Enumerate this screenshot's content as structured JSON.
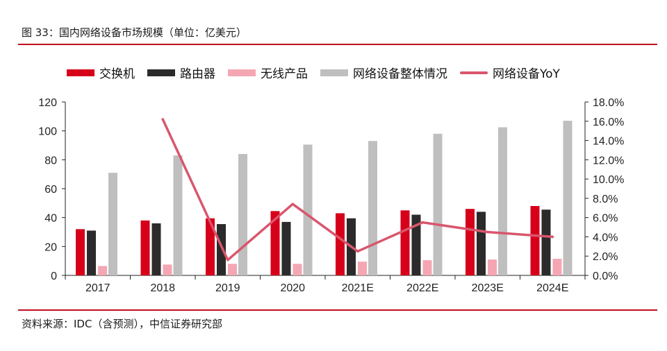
{
  "figure": {
    "title": "图 33：国内网络设备市场规模（单位：亿美元）",
    "source": "资料来源：IDC（含预测），中信证券研究部"
  },
  "colors": {
    "rule": "#c00d1e"
  },
  "chart_data": {
    "type": "bar",
    "categories": [
      "2017",
      "2018",
      "2019",
      "2020",
      "2021E",
      "2022E",
      "2023E",
      "2024E"
    ],
    "series": [
      {
        "name": "交换机",
        "type": "bar",
        "axis": "left",
        "color": "#d7001a",
        "values": [
          32,
          38,
          39.5,
          44.5,
          43,
          45,
          46,
          48
        ]
      },
      {
        "name": "路由器",
        "type": "bar",
        "axis": "left",
        "color": "#2b2b2b",
        "values": [
          31,
          36,
          35.5,
          37,
          39.5,
          42,
          44,
          45.5
        ]
      },
      {
        "name": "无线产品",
        "type": "bar",
        "axis": "left",
        "color": "#f4a7b3",
        "values": [
          6.5,
          7.5,
          8,
          8,
          9.5,
          10.5,
          11,
          11.5
        ]
      },
      {
        "name": "网络设备整体情况",
        "type": "bar",
        "axis": "left",
        "color": "#bfbfbf",
        "values": [
          71,
          83,
          84,
          90.5,
          93,
          98,
          102.5,
          107
        ]
      },
      {
        "name": "网络设备YoY",
        "type": "line",
        "axis": "right",
        "color": "#d9566d",
        "values": [
          null,
          16.2,
          1.6,
          7.4,
          2.5,
          5.5,
          4.5,
          4.0
        ]
      }
    ],
    "ylim": [
      0,
      120
    ],
    "yticks": [
      "0",
      "20",
      "40",
      "60",
      "80",
      "100",
      "120"
    ],
    "y2lim": [
      0,
      18
    ],
    "y2ticks": [
      "0.0%",
      "2.0%",
      "4.0%",
      "6.0%",
      "8.0%",
      "10.0%",
      "12.0%",
      "14.0%",
      "16.0%",
      "18.0%"
    ],
    "legend_position": "top",
    "grid": false
  }
}
